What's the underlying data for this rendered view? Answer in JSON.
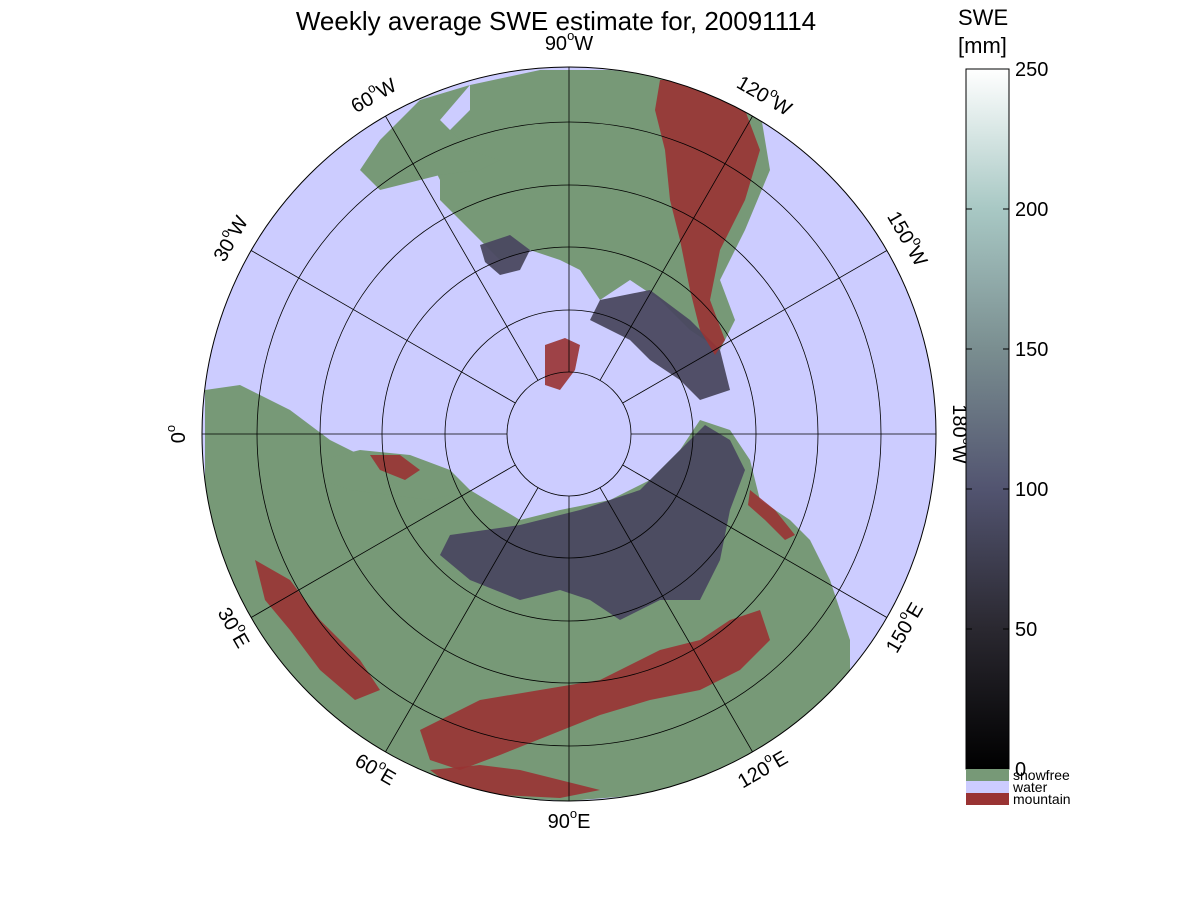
{
  "title": "Weekly average SWE estimate for, 20091114",
  "map": {
    "projection": "north polar stereographic",
    "longitude_labels": [
      {
        "text": "90",
        "hemi": "W"
      },
      {
        "text": "120",
        "hemi": "W"
      },
      {
        "text": "150",
        "hemi": "W"
      },
      {
        "text": "180",
        "hemi": "W"
      },
      {
        "text": "150",
        "hemi": "E"
      },
      {
        "text": "120",
        "hemi": "E"
      },
      {
        "text": "90",
        "hemi": "E"
      },
      {
        "text": "60",
        "hemi": "E"
      },
      {
        "text": "30",
        "hemi": "E"
      },
      {
        "text": "0",
        "hemi": ""
      },
      {
        "text": "30",
        "hemi": "W"
      },
      {
        "text": "60",
        "hemi": "W"
      }
    ],
    "colors": {
      "water": "#ccccff",
      "snowfree": "#779977",
      "mountain": "#993333",
      "snow_low": "#16141c",
      "snow_high": "#4a4860"
    }
  },
  "colorbar": {
    "title_line1": "SWE",
    "title_line2": "[mm]",
    "ticks": [
      "0",
      "50",
      "100",
      "150",
      "200",
      "250"
    ],
    "range": [
      0,
      250
    ],
    "legend": [
      {
        "label": "snowfree",
        "color": "#779977"
      },
      {
        "label": "water",
        "color": "#ccccff"
      },
      {
        "label": "mountain",
        "color": "#993333"
      }
    ]
  }
}
